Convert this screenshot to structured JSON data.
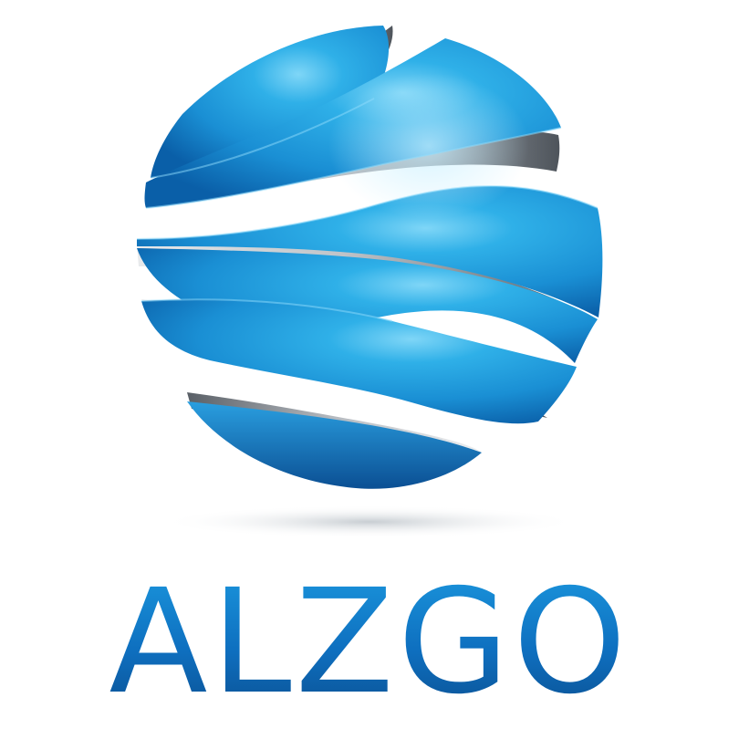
{
  "brand": {
    "name": "ALZGO",
    "colors": {
      "primary": "#1e8fd2",
      "light": "#5cc7f3",
      "dark": "#0a5fa8",
      "deep": "#0b4c8c",
      "silver": "#b7bcc2",
      "silver_dark": "#5e646b"
    }
  },
  "logo": {
    "icon": "banded-sphere-icon"
  }
}
